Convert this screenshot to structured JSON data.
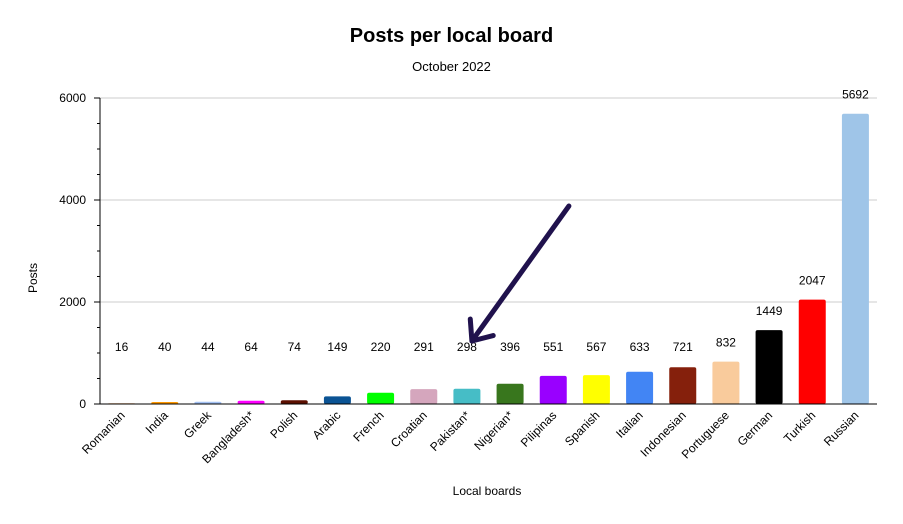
{
  "chart_data": {
    "type": "bar",
    "title": "Posts per local board",
    "subtitle": "October 2022",
    "xlabel": "Local boards",
    "ylabel": "Posts",
    "ylim": [
      0,
      6000
    ],
    "yticks": [
      0,
      2000,
      4000,
      6000
    ],
    "grid": true,
    "categories": [
      "Romanian",
      "India",
      "Greek",
      "Bangladesh*",
      "Polish",
      "Arabic",
      "French",
      "Croatian",
      "Pakistan*",
      "Nigerian*",
      "Pilipinas",
      "Spanish",
      "Italian",
      "Indonesian",
      "Portuguese",
      "German",
      "Turkish",
      "Russian"
    ],
    "values": [
      16,
      40,
      44,
      64,
      74,
      149,
      220,
      291,
      298,
      396,
      551,
      567,
      633,
      721,
      832,
      1449,
      2047,
      5692
    ],
    "colors": [
      "#f4c7a1",
      "#ff9900",
      "#a4c2f4",
      "#ff00ff",
      "#5b0f00",
      "#0b5394",
      "#00ff00",
      "#d5a6bd",
      "#46bdc6",
      "#38761d",
      "#9900ff",
      "#ffff00",
      "#4285f4",
      "#85200c",
      "#f9cb9c",
      "#000000",
      "#ff0000",
      "#9fc5e8"
    ],
    "annotation": {
      "type": "arrow",
      "color": "#20124d",
      "points_to": "Pakistan*"
    }
  }
}
